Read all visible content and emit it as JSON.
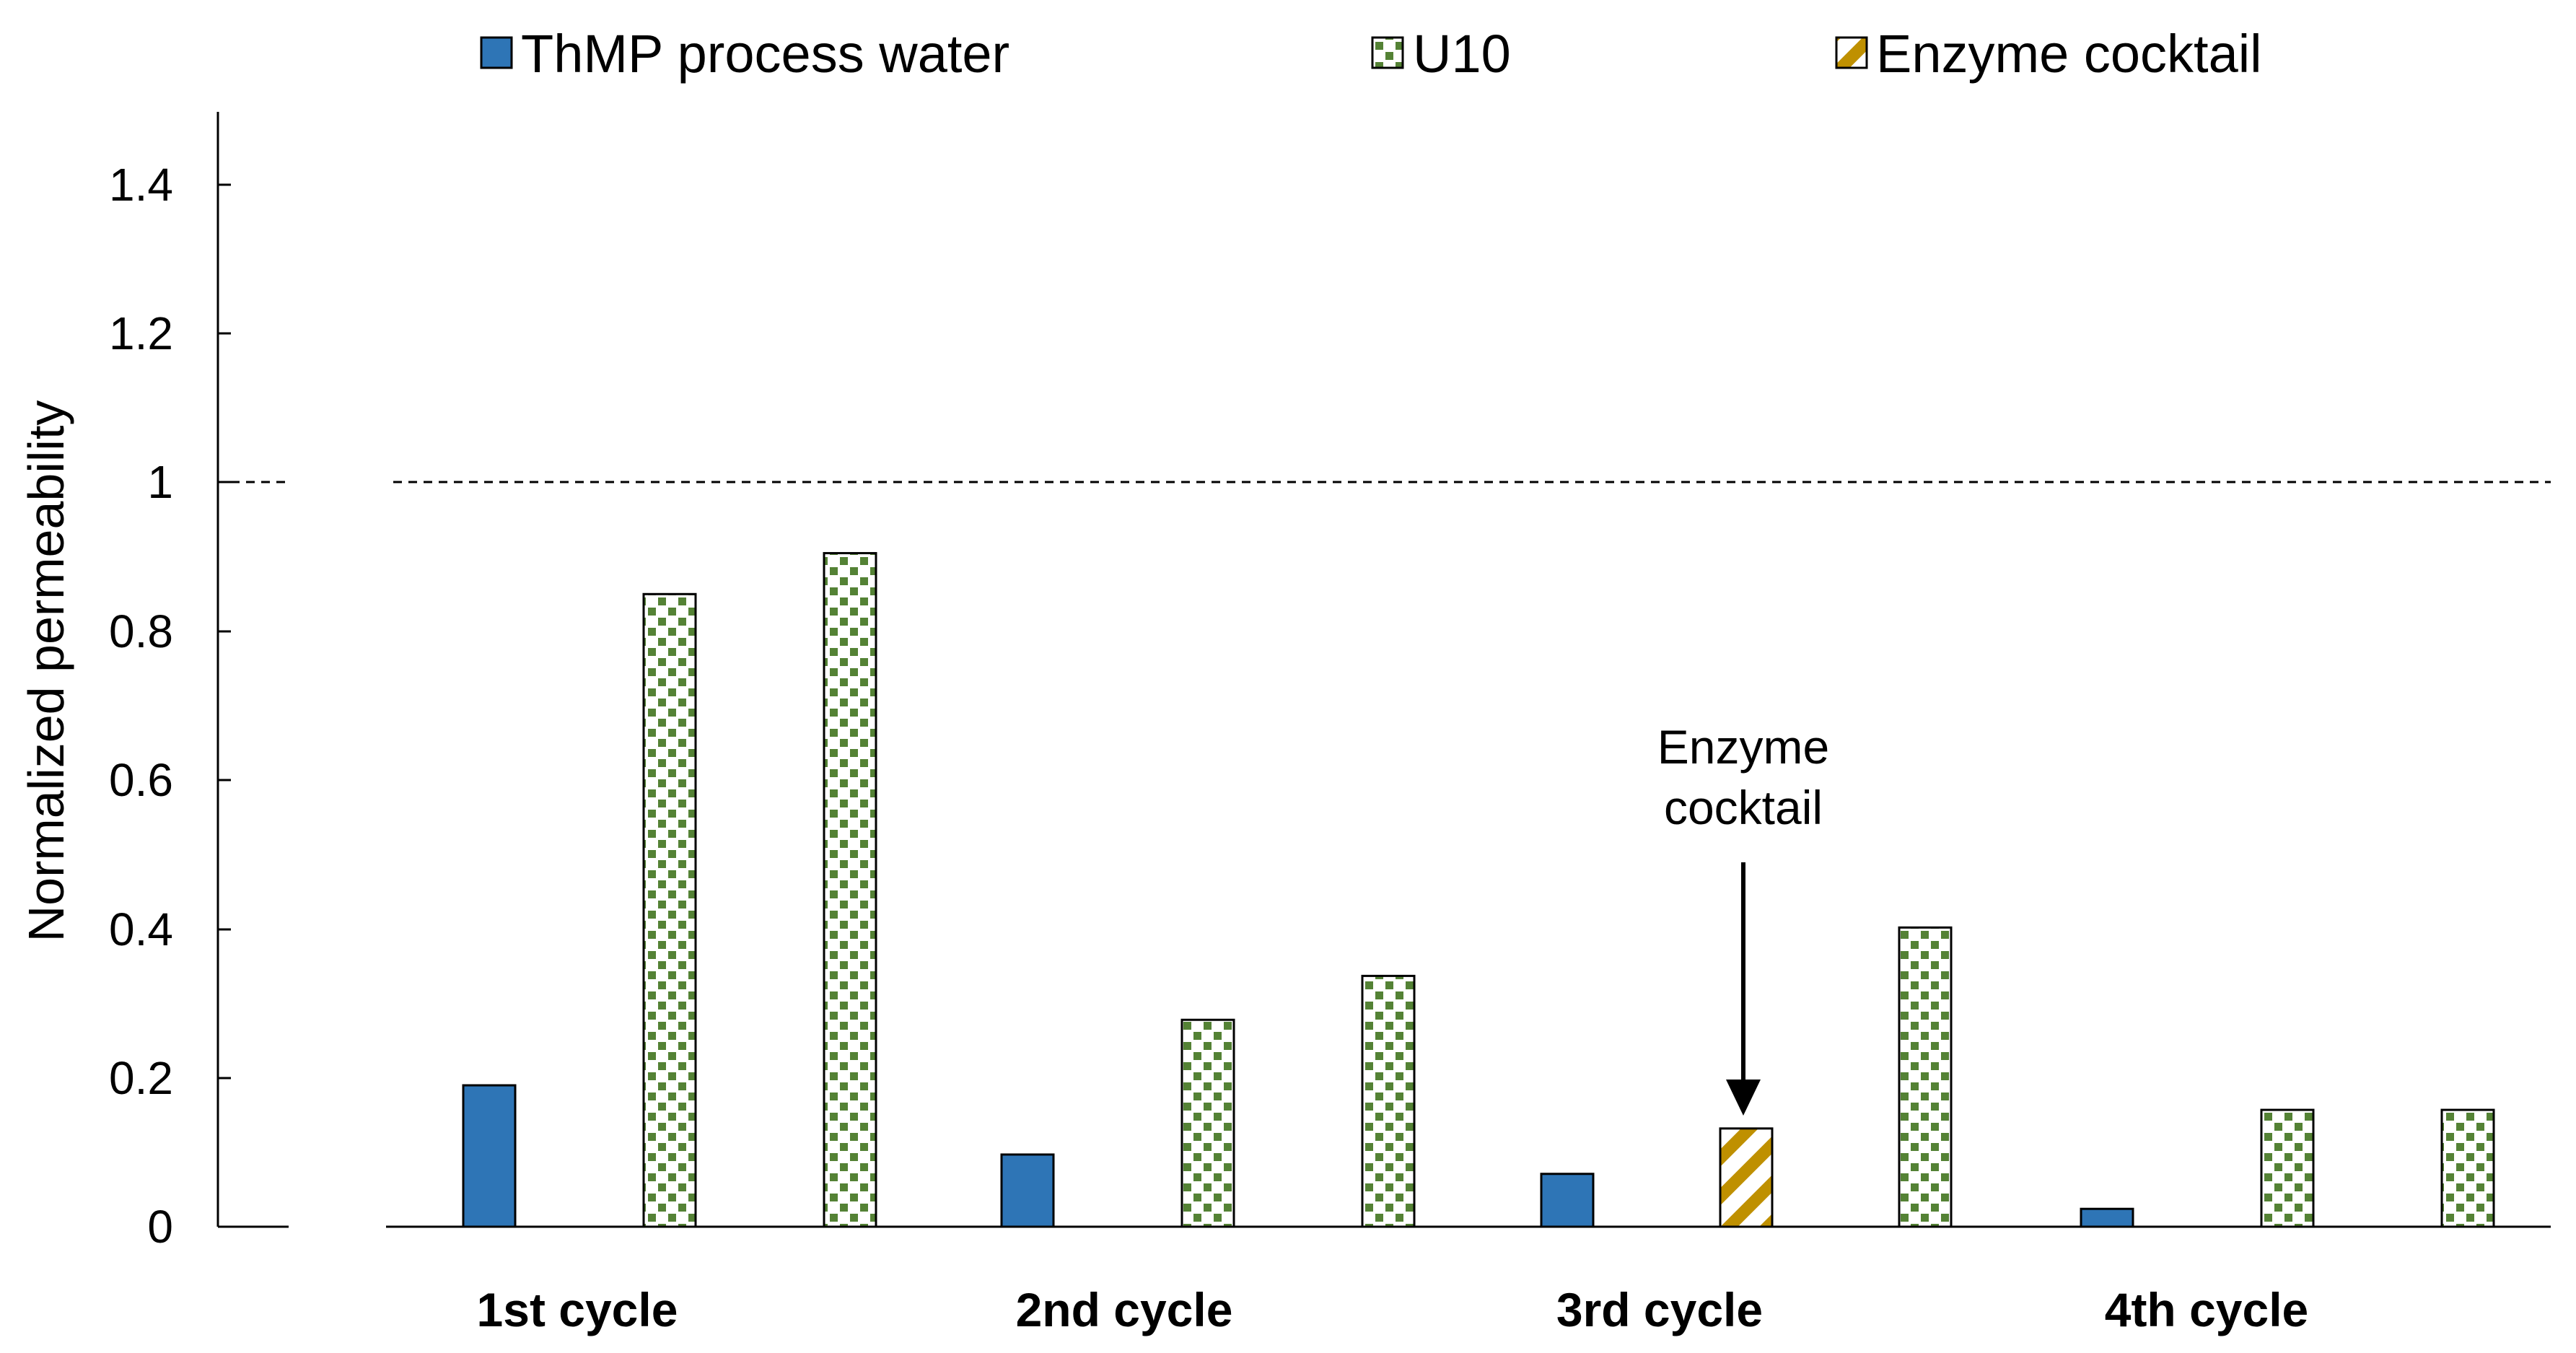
{
  "chart_data": {
    "type": "bar",
    "title": "",
    "xlabel": "",
    "ylabel": "Normalized permeability",
    "ylim": [
      0,
      1.5
    ],
    "yticks": [
      "0",
      "0.2",
      "0.4",
      "0.6",
      "0.8",
      "1",
      "1.2",
      "1.4"
    ],
    "reference_line": 1,
    "legend": [
      {
        "key": "thmp",
        "label": "ThMP process water",
        "color": "#2e75b6",
        "pattern": "solid"
      },
      {
        "key": "u10",
        "label": "U10",
        "color": "#548235",
        "pattern": "checker"
      },
      {
        "key": "enzyme",
        "label": "Enzyme cocktail",
        "color": "#bf9000",
        "pattern": "diagonal"
      }
    ],
    "categories": [
      "1st cycle",
      "2nd cycle",
      "3rd cycle",
      "4th cycle"
    ],
    "bars": [
      {
        "cycle": "1st cycle",
        "series": "thmp",
        "value": 0.19
      },
      {
        "cycle": "1st cycle",
        "series": "u10",
        "value": 0.85
      },
      {
        "cycle": "1st cycle",
        "series": "u10",
        "value": 0.905
      },
      {
        "cycle": "2nd cycle",
        "series": "thmp",
        "value": 0.097
      },
      {
        "cycle": "2nd cycle",
        "series": "u10",
        "value": 0.278
      },
      {
        "cycle": "2nd cycle",
        "series": "u10",
        "value": 0.337
      },
      {
        "cycle": "3rd cycle",
        "series": "thmp",
        "value": 0.071
      },
      {
        "cycle": "3rd cycle",
        "series": "enzyme",
        "value": 0.132
      },
      {
        "cycle": "3rd cycle",
        "series": "u10",
        "value": 0.402
      },
      {
        "cycle": "4th cycle",
        "series": "thmp",
        "value": 0.024
      },
      {
        "cycle": "4th cycle",
        "series": "u10",
        "value": 0.157
      },
      {
        "cycle": "4th cycle",
        "series": "u10",
        "value": 0.157
      }
    ],
    "annotation": {
      "lines": [
        "Enzyme",
        "cocktail"
      ],
      "target_bar": 7
    }
  }
}
